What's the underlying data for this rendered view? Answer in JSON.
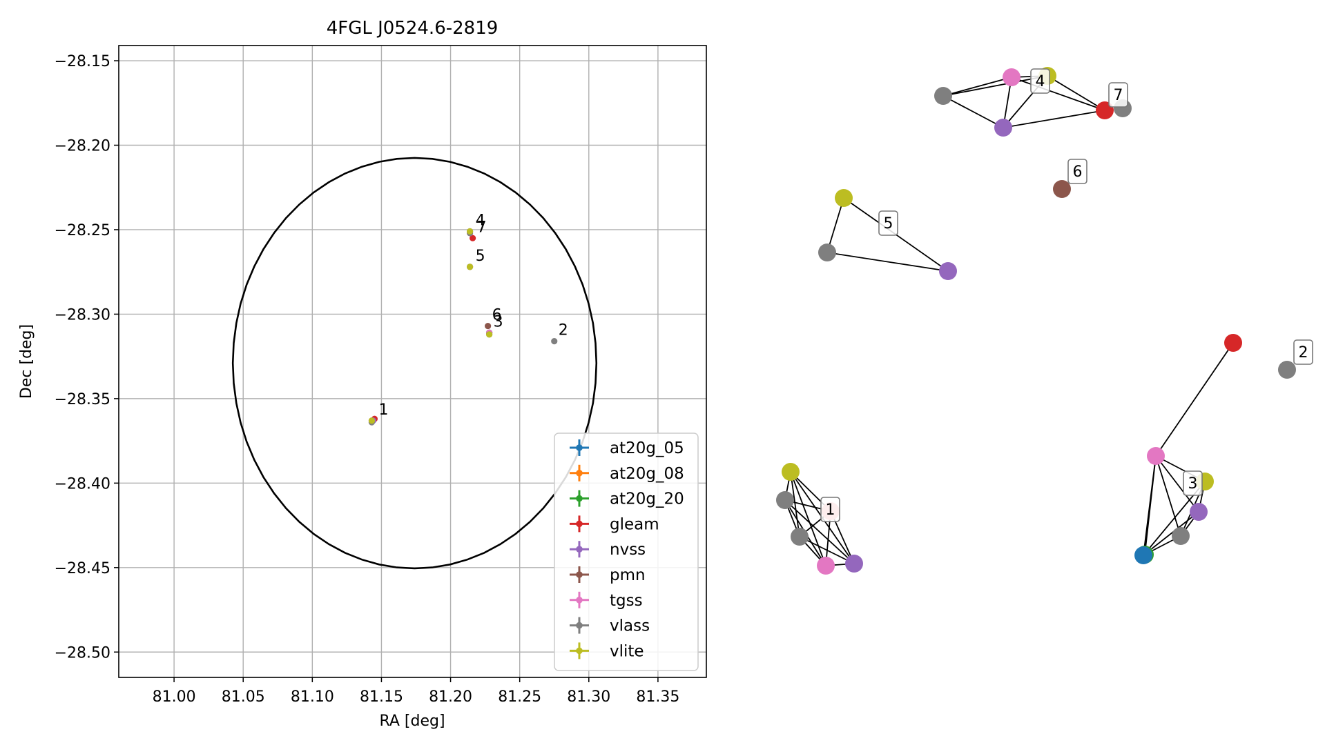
{
  "chart_data": [
    {
      "type": "scatter",
      "title": "4FGL J0524.6-2819",
      "xlabel": "RA [deg]",
      "ylabel": "Dec [deg]",
      "xlim": [
        80.96,
        81.385
      ],
      "ylim": [
        -28.515,
        -28.141
      ],
      "xticks": [
        81.0,
        81.05,
        81.1,
        81.15,
        81.2,
        81.25,
        81.3,
        81.35
      ],
      "xtick_labels": [
        "81.00",
        "81.05",
        "81.10",
        "81.15",
        "81.20",
        "81.25",
        "81.30",
        "81.35"
      ],
      "yticks": [
        -28.15,
        -28.2,
        -28.25,
        -28.3,
        -28.35,
        -28.4,
        -28.45,
        -28.5
      ],
      "ytick_labels": [
        "−28.15",
        "−28.20",
        "−28.25",
        "−28.30",
        "−28.35",
        "−28.40",
        "−28.45",
        "−28.50"
      ],
      "grid": true,
      "legend_position": "lower-right",
      "ellipse": {
        "center_ra": 81.174,
        "center_dec": -28.329,
        "semi_axis_ra": 0.1315,
        "semi_axis_dec": 0.1215,
        "color": "#000000"
      },
      "series": [
        {
          "name": "at20g_05",
          "color": "#1f77b4",
          "points": [
            {
              "ra": 81.228,
              "dec": -28.311
            }
          ]
        },
        {
          "name": "at20g_08",
          "color": "#ff7f0e",
          "points": [
            {
              "ra": 81.228,
              "dec": -28.311
            }
          ]
        },
        {
          "name": "at20g_20",
          "color": "#2ca02c",
          "points": [
            {
              "ra": 81.228,
              "dec": -28.311
            }
          ]
        },
        {
          "name": "gleam",
          "color": "#d62728",
          "points": [
            {
              "ra": 81.145,
              "dec": -28.362
            },
            {
              "ra": 81.216,
              "dec": -28.255
            }
          ]
        },
        {
          "name": "nvss",
          "color": "#9467bd",
          "points": [
            {
              "ra": 81.144,
              "dec": -28.363
            },
            {
              "ra": 81.228,
              "dec": -28.311
            },
            {
              "ra": 81.214,
              "dec": -28.251
            },
            {
              "ra": 81.214,
              "dec": -28.272
            }
          ]
        },
        {
          "name": "pmn",
          "color": "#8c564b",
          "points": [
            {
              "ra": 81.227,
              "dec": -28.307
            }
          ]
        },
        {
          "name": "tgss",
          "color": "#e377c2",
          "points": [
            {
              "ra": 81.143,
              "dec": -28.363
            },
            {
              "ra": 81.228,
              "dec": -28.311
            },
            {
              "ra": 81.214,
              "dec": -28.252
            }
          ]
        },
        {
          "name": "vlass",
          "color": "#7f7f7f",
          "points": [
            {
              "ra": 81.143,
              "dec": -28.364
            },
            {
              "ra": 81.228,
              "dec": -28.312
            },
            {
              "ra": 81.214,
              "dec": -28.252
            },
            {
              "ra": 81.214,
              "dec": -28.272
            },
            {
              "ra": 81.275,
              "dec": -28.316
            }
          ]
        },
        {
          "name": "vlite",
          "color": "#bcbd22",
          "points": [
            {
              "ra": 81.143,
              "dec": -28.363
            },
            {
              "ra": 81.228,
              "dec": -28.312
            },
            {
              "ra": 81.214,
              "dec": -28.251
            },
            {
              "ra": 81.214,
              "dec": -28.272
            }
          ]
        }
      ],
      "annotations": [
        {
          "text": "1",
          "ra": 81.146,
          "dec": -28.361
        },
        {
          "text": "2",
          "ra": 81.276,
          "dec": -28.314
        },
        {
          "text": "3",
          "ra": 81.229,
          "dec": -28.309
        },
        {
          "text": "4",
          "ra": 81.216,
          "dec": -28.249
        },
        {
          "text": "5",
          "ra": 81.216,
          "dec": -28.27
        },
        {
          "text": "6",
          "ra": 81.228,
          "dec": -28.305
        },
        {
          "text": "7",
          "ra": 81.217,
          "dec": -28.253
        }
      ]
    },
    {
      "type": "network",
      "labels": [
        "1",
        "2",
        "3",
        "4",
        "5",
        "6",
        "7"
      ]
    }
  ]
}
